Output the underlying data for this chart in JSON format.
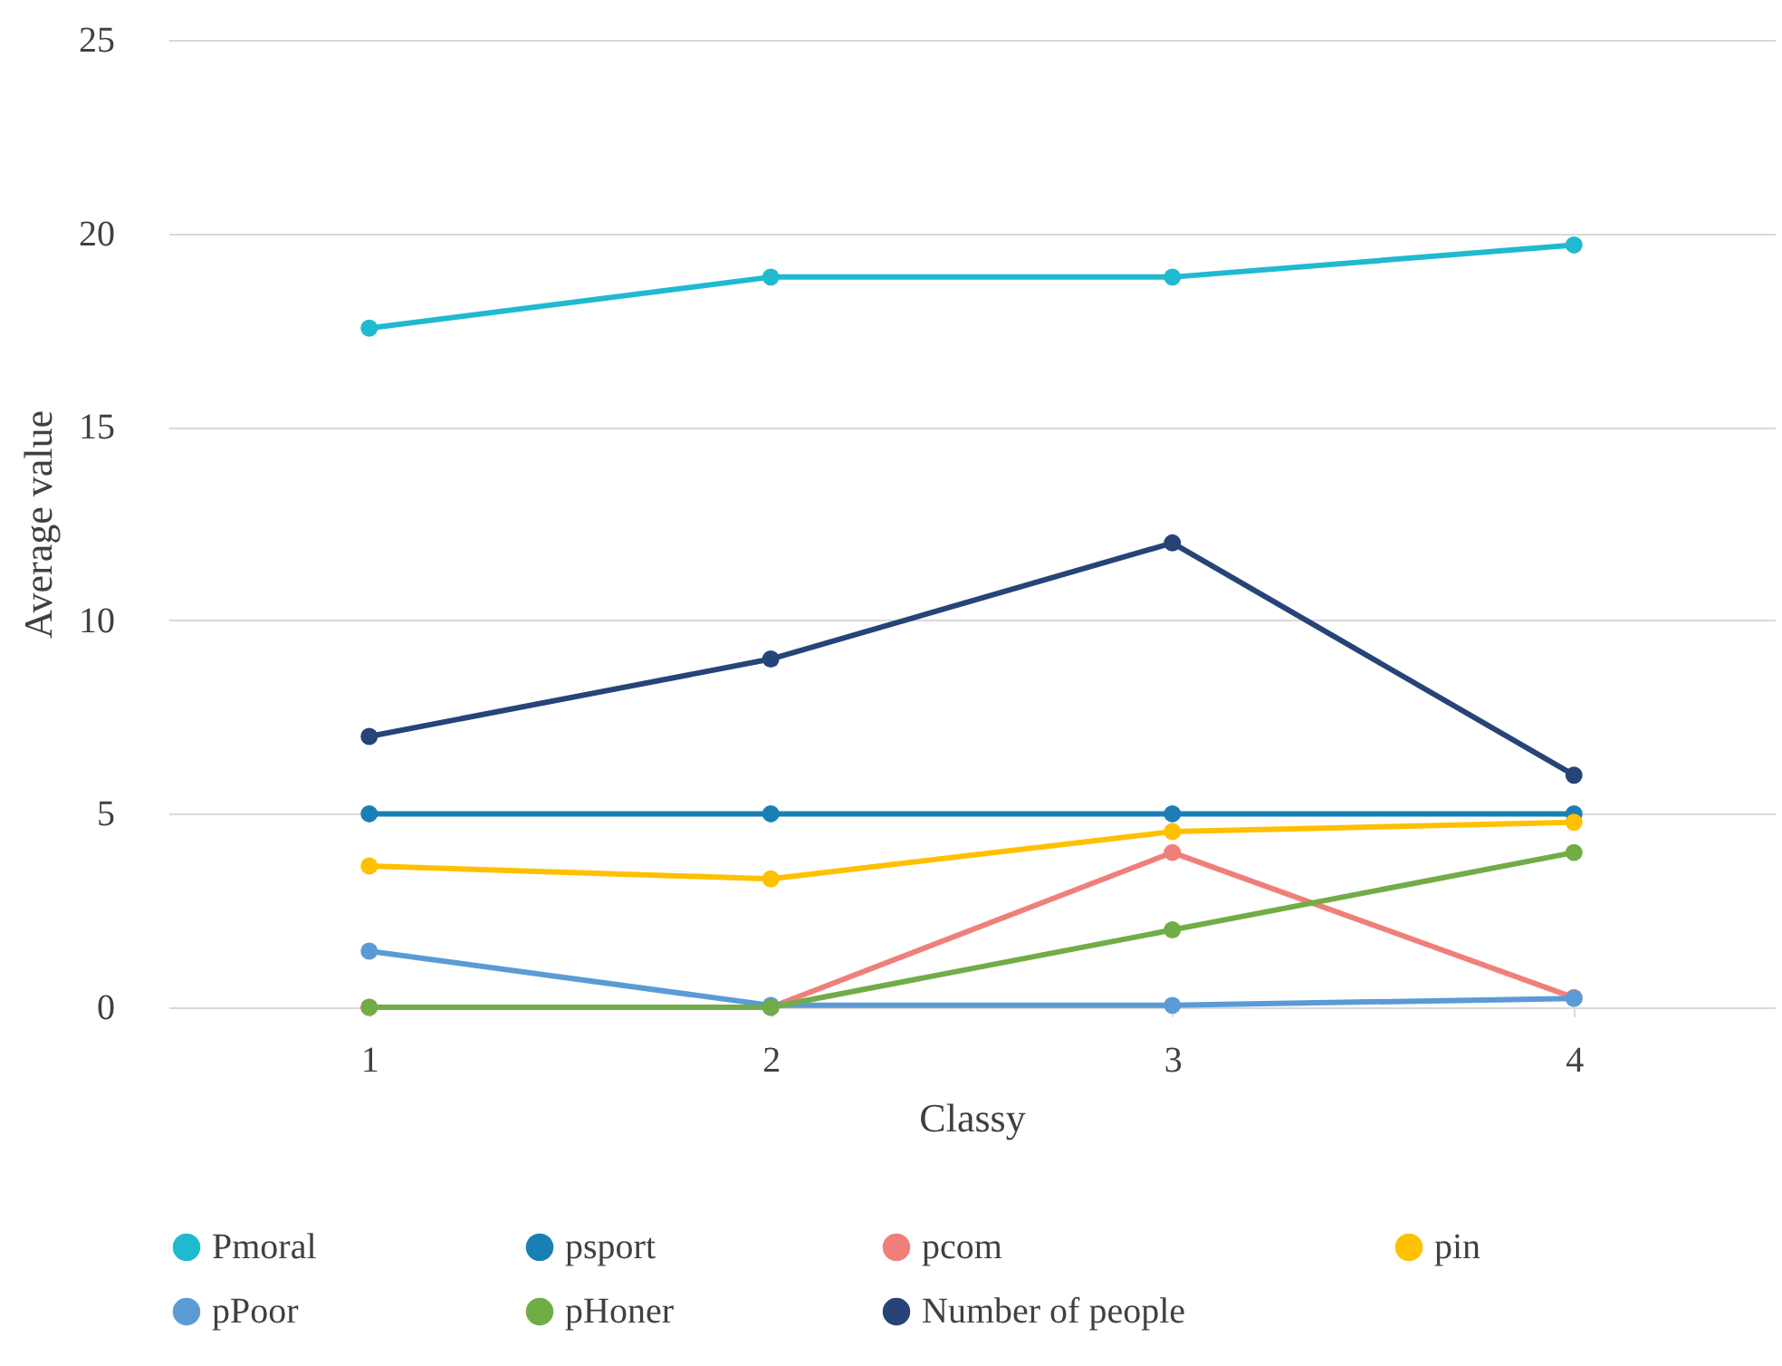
{
  "chart_data": {
    "type": "line",
    "xlabel": "Classy",
    "ylabel": "Average value",
    "categories": [
      "1",
      "2",
      "3",
      "4"
    ],
    "series": [
      {
        "name": "Pmoral",
        "color": "#1fbad0",
        "values": [
          17.55,
          18.87,
          18.87,
          19.7
        ]
      },
      {
        "name": "psport",
        "color": "#1a7fb4",
        "values": [
          5,
          5,
          5,
          5
        ]
      },
      {
        "name": "pcom",
        "color": "#f07f7a",
        "values": [
          0,
          0,
          4,
          0.25
        ]
      },
      {
        "name": "pin",
        "color": "#ffc000",
        "values": [
          3.65,
          3.32,
          4.54,
          4.78
        ]
      },
      {
        "name": "pPoor",
        "color": "#5b9bd5",
        "values": [
          1.45,
          0.05,
          0.05,
          0.23
        ]
      },
      {
        "name": "pHoner",
        "color": "#70ad47",
        "values": [
          0,
          0,
          2,
          4
        ]
      },
      {
        "name": "Number of people",
        "color": "#264478",
        "values": [
          7,
          9,
          12,
          6
        ]
      }
    ],
    "ylim": [
      0,
      25
    ],
    "yticks": [
      0,
      5,
      10,
      15,
      20,
      25
    ],
    "grid": "y",
    "legend": "bottom",
    "marker": "circle",
    "line_style": "solid"
  }
}
